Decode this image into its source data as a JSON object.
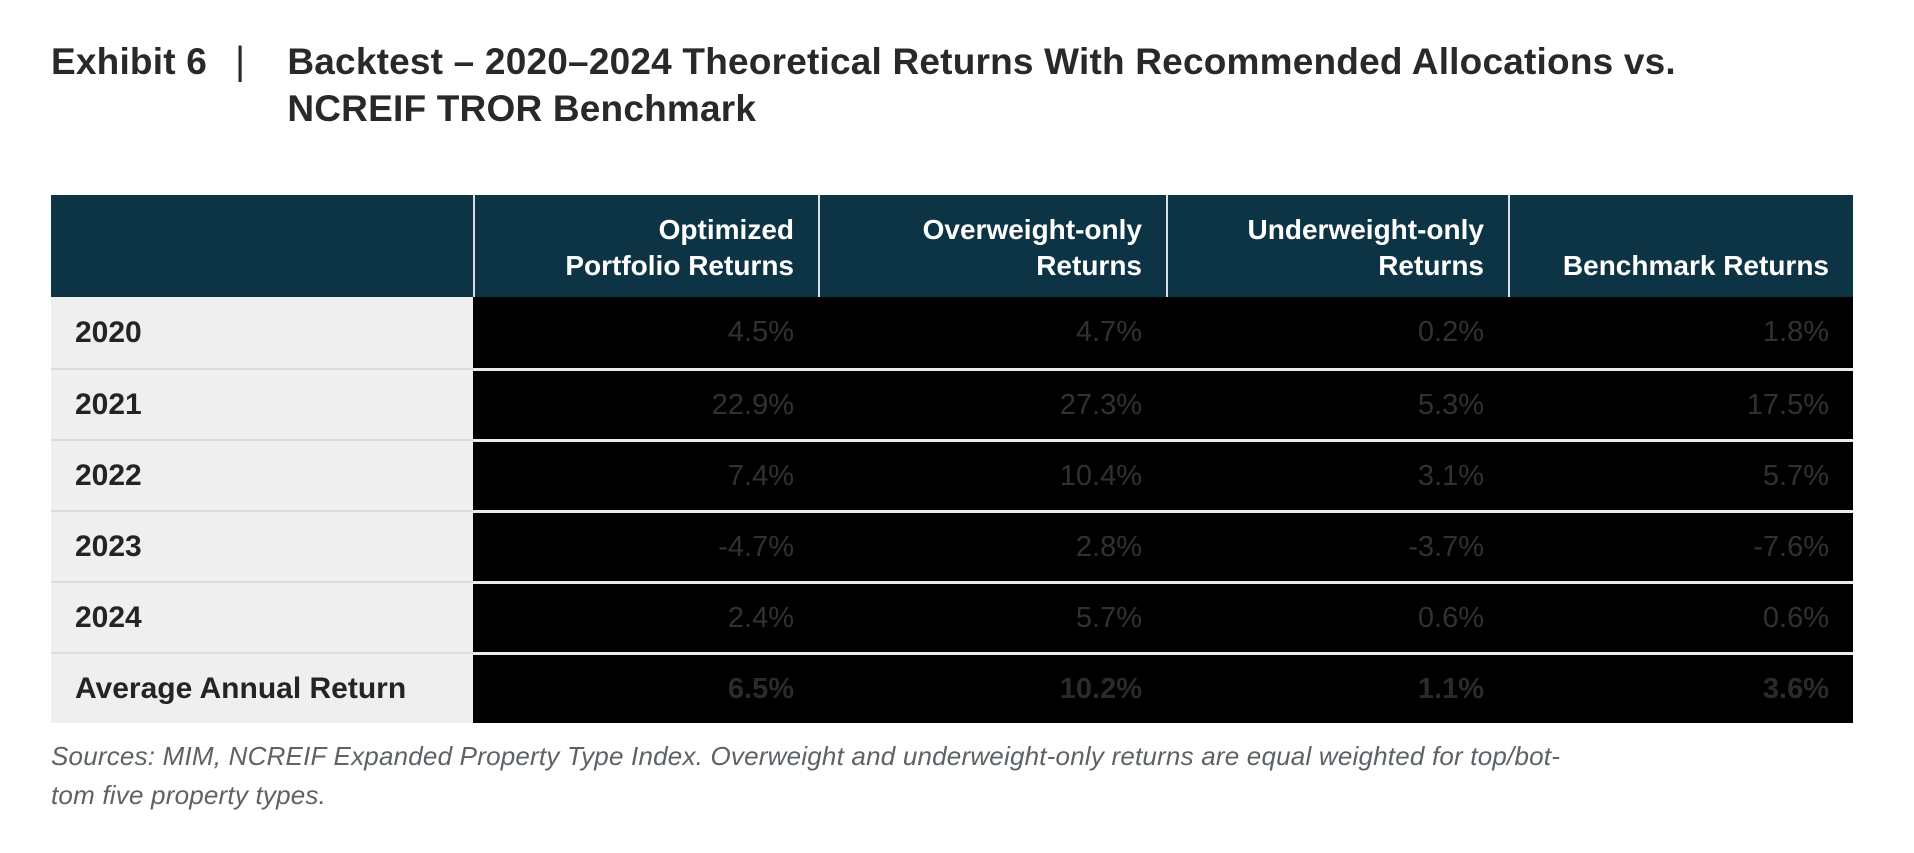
{
  "exhibit": {
    "label": "Exhibit 6",
    "separator": "|",
    "title_line1": "Backtest – 2020–2024 Theoretical Returns With Recommended Allocations vs.",
    "title_line2": "NCREIF TROR Benchmark"
  },
  "table": {
    "header": {
      "col1": "",
      "col2_line1": "Optimized",
      "col2_line2": "Portfolio Returns",
      "col3_line1": "Overweight-only",
      "col3_line2": "Returns",
      "col4_line1": "Underweight-only",
      "col4_line2": "Returns",
      "col5_line1": "Benchmark Returns"
    },
    "rows": [
      {
        "label": "2020",
        "values": [
          "4.5%",
          "4.7%",
          "0.2%",
          "1.8%"
        ]
      },
      {
        "label": "2021",
        "values": [
          "22.9%",
          "27.3%",
          "5.3%",
          "17.5%"
        ]
      },
      {
        "label": "2022",
        "values": [
          "7.4%",
          "10.4%",
          "3.1%",
          "5.7%"
        ]
      },
      {
        "label": "2023",
        "values": [
          "-4.7%",
          "2.8%",
          "-3.7%",
          "-7.6%"
        ]
      },
      {
        "label": "2024",
        "values": [
          "2.4%",
          "5.7%",
          "0.6%",
          "0.6%"
        ]
      },
      {
        "label": "Average Annual Return",
        "values": [
          "6.5%",
          "10.2%",
          "1.1%",
          "3.6%"
        ]
      }
    ]
  },
  "footnote": {
    "line1": "Sources: MIM, NCREIF Expanded Property Type Index. Overweight and underweight-only returns are equal weighted for top/bot-",
    "line2": "tom five property types."
  },
  "colors": {
    "header_bg": "#0d3444",
    "header_text": "#ffffff",
    "header_divider": "#d7dde0",
    "label_column_bg": "#f0efef",
    "label_text": "#262324",
    "data_bg": "#000000",
    "value_text": "#343031",
    "row_divider_data": "#eceaea",
    "row_divider_label": "#dcdada",
    "title_text": "#2b2829",
    "footnote_text": "#5c6266",
    "page_bg": "#ffffff"
  },
  "chart_data": {
    "type": "table",
    "title": "Exhibit 6 | Backtest – 2020–2024 Theoretical Returns With Recommended Allocations vs. NCREIF TROR Benchmark",
    "categories": [
      "2020",
      "2021",
      "2022",
      "2023",
      "2024",
      "Average Annual Return"
    ],
    "series": [
      {
        "name": "Optimized Portfolio Returns",
        "values": [
          4.5,
          22.9,
          7.4,
          -4.7,
          2.4,
          6.5
        ]
      },
      {
        "name": "Overweight-only Returns",
        "values": [
          4.7,
          27.3,
          10.4,
          2.8,
          5.7,
          10.2
        ]
      },
      {
        "name": "Underweight-only Returns",
        "values": [
          0.2,
          5.3,
          3.1,
          -3.7,
          0.6,
          1.1
        ]
      },
      {
        "name": "Benchmark Returns",
        "values": [
          1.8,
          17.5,
          5.7,
          -7.6,
          0.6,
          3.6
        ]
      }
    ],
    "unit": "%",
    "source_note": "Sources: MIM, NCREIF Expanded Property Type Index. Overweight and underweight-only returns are equal weighted for top/bottom five property types."
  }
}
